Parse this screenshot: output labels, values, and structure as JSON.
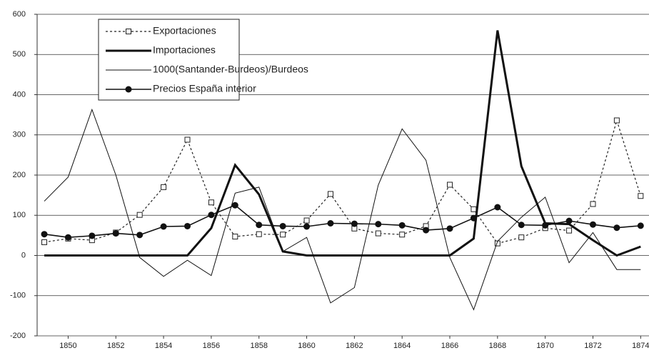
{
  "chart_data": {
    "type": "line",
    "x": [
      1849,
      1850,
      1851,
      1852,
      1853,
      1854,
      1855,
      1856,
      1857,
      1858,
      1859,
      1860,
      1861,
      1862,
      1863,
      1864,
      1865,
      1866,
      1867,
      1868,
      1869,
      1870,
      1871,
      1872,
      1873,
      1874
    ],
    "xlim": [
      1848.7,
      1874.35
    ],
    "xticks": [
      1850,
      1852,
      1854,
      1856,
      1858,
      1860,
      1862,
      1864,
      1866,
      1868,
      1870,
      1872,
      1874
    ],
    "ylim": [
      -200,
      600
    ],
    "yticks": [
      -200,
      -100,
      0,
      100,
      200,
      300,
      400,
      500,
      600
    ],
    "grid": true,
    "series": [
      {
        "name": "Exportaciones",
        "color": "#222222",
        "dash": true,
        "width": 1.2,
        "marker": "square",
        "values": [
          33,
          42,
          38,
          57,
          101,
          170,
          288,
          132,
          47,
          53,
          52,
          87,
          153,
          67,
          55,
          52,
          73,
          176,
          115,
          30,
          45,
          68,
          62,
          128,
          336,
          148
        ]
      },
      {
        "name": "Importaciones",
        "color": "#111111",
        "dash": false,
        "width": 3,
        "marker": "none",
        "values": [
          0,
          0,
          0,
          0,
          0,
          0,
          0,
          68,
          225,
          152,
          10,
          0,
          0,
          0,
          0,
          0,
          0,
          0,
          42,
          560,
          222,
          80,
          78,
          38,
          0,
          22
        ]
      },
      {
        "name": "1000(Santander-Burdeos)/Burdeos",
        "color": "#111111",
        "dash": false,
        "width": 1,
        "marker": "none",
        "values": [
          135,
          195,
          363,
          200,
          -5,
          -52,
          -12,
          -50,
          155,
          170,
          10,
          45,
          -118,
          -80,
          175,
          315,
          237,
          -5,
          -135,
          35,
          95,
          145,
          -18,
          57,
          -35,
          -35
        ]
      },
      {
        "name": "Precios España interior",
        "color": "#111111",
        "dash": false,
        "width": 1.6,
        "marker": "circle",
        "values": [
          53,
          45,
          49,
          55,
          51,
          72,
          73,
          101,
          125,
          76,
          73,
          72,
          80,
          79,
          78,
          75,
          63,
          67,
          93,
          120,
          76,
          75,
          86,
          77,
          69,
          74
        ]
      }
    ]
  }
}
